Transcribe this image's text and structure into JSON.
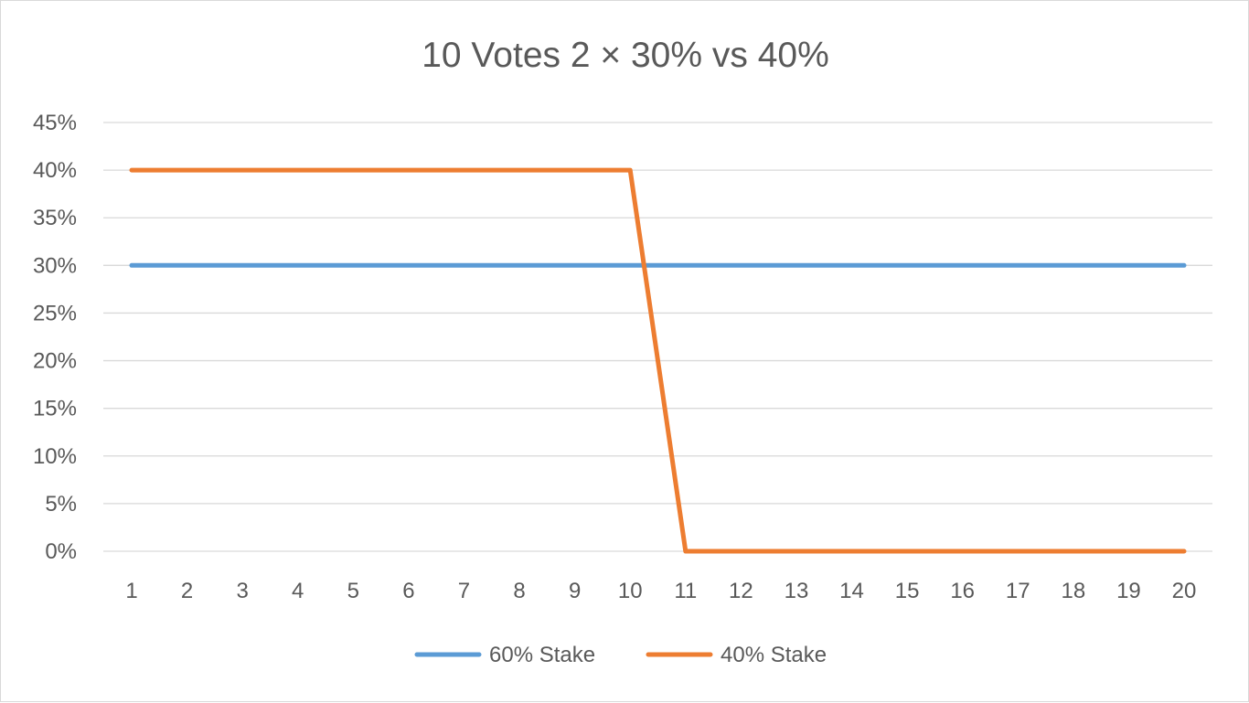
{
  "chart_data": {
    "type": "line",
    "title": "10 Votes 2 × 30% vs 40%",
    "xlabel": "",
    "ylabel": "",
    "categories": [
      "1",
      "2",
      "3",
      "4",
      "5",
      "6",
      "7",
      "8",
      "9",
      "10",
      "11",
      "12",
      "13",
      "14",
      "15",
      "16",
      "17",
      "18",
      "19",
      "20"
    ],
    "y_tick_labels": [
      "0%",
      "5%",
      "10%",
      "15%",
      "20%",
      "25%",
      "30%",
      "35%",
      "40%",
      "45%"
    ],
    "ylim": [
      0,
      45
    ],
    "grid": "horizontal",
    "legend_position": "bottom",
    "series": [
      {
        "name": "60% Stake",
        "color": "#5b9bd5",
        "values": [
          30,
          30,
          30,
          30,
          30,
          30,
          30,
          30,
          30,
          30,
          30,
          30,
          30,
          30,
          30,
          30,
          30,
          30,
          30,
          30
        ]
      },
      {
        "name": "40% Stake",
        "color": "#ed7d31",
        "values": [
          40,
          40,
          40,
          40,
          40,
          40,
          40,
          40,
          40,
          40,
          0,
          0,
          0,
          0,
          0,
          0,
          0,
          0,
          0,
          0
        ]
      }
    ]
  }
}
